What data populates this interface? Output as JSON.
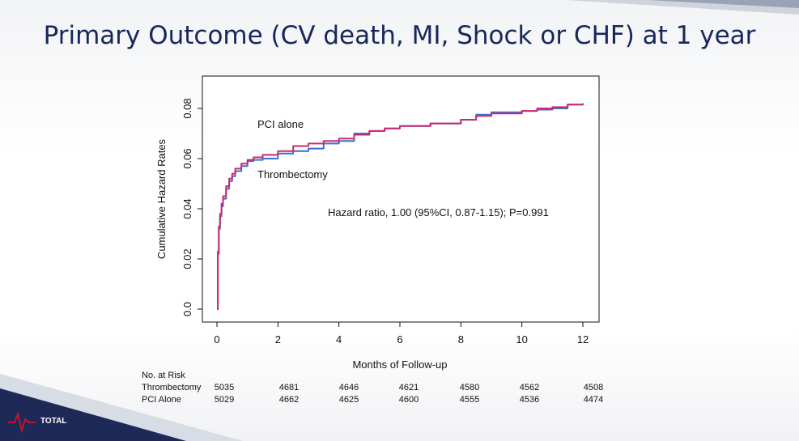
{
  "slide": {
    "title": "Primary Outcome (CV death, MI, Shock or CHF) at 1 year",
    "logo_text": "TOTAL",
    "colors": {
      "title": "#17275c",
      "navy": "#1d2a57",
      "accent_red": "#c0162c"
    }
  },
  "chart_data": {
    "type": "line",
    "xlabel": "Months of Follow-up",
    "ylabel": "Cumulative Hazard Rates",
    "xlim": [
      0,
      12
    ],
    "ylim": [
      0,
      0.08
    ],
    "xticks": [
      "0",
      "2",
      "4",
      "6",
      "8",
      "10",
      "12"
    ],
    "yticks": [
      "0.0",
      "0.02",
      "0.04",
      "0.06",
      "0.08"
    ],
    "annotations": [
      "PCI alone",
      "Thrombectomy",
      "Hazard ratio, 1.00 (95%CI, 0.87-1.15); P=0.991"
    ],
    "series": [
      {
        "color": "#3a6fd8",
        "x": [
          0,
          0.03,
          0.06,
          0.1,
          0.15,
          0.2,
          0.3,
          0.4,
          0.5,
          0.6,
          0.8,
          1.0,
          1.2,
          1.5,
          2.0,
          2.5,
          3.0,
          3.5,
          4.0,
          4.5,
          5.0,
          5.5,
          6.0,
          7.0,
          8.0,
          8.5,
          9.0,
          10.0,
          10.5,
          11.0,
          11.5,
          12.0
        ],
        "y": [
          0,
          0.022,
          0.032,
          0.037,
          0.041,
          0.044,
          0.048,
          0.051,
          0.053,
          0.055,
          0.057,
          0.059,
          0.0595,
          0.06,
          0.062,
          0.063,
          0.064,
          0.066,
          0.067,
          0.07,
          0.071,
          0.072,
          0.073,
          0.074,
          0.0755,
          0.0775,
          0.0785,
          0.079,
          0.0795,
          0.08,
          0.0815,
          0.082
        ]
      },
      {
        "color": "#cc2a6e",
        "x": [
          0,
          0.03,
          0.06,
          0.1,
          0.15,
          0.2,
          0.3,
          0.4,
          0.5,
          0.6,
          0.8,
          1.0,
          1.2,
          1.5,
          2.0,
          2.5,
          3.0,
          3.5,
          4.0,
          4.5,
          5.0,
          5.5,
          6.0,
          7.0,
          8.0,
          8.5,
          9.0,
          10.0,
          10.5,
          11.0,
          11.5,
          12.0
        ],
        "y": [
          0,
          0.023,
          0.033,
          0.038,
          0.042,
          0.045,
          0.049,
          0.052,
          0.054,
          0.056,
          0.058,
          0.0595,
          0.0605,
          0.0615,
          0.063,
          0.065,
          0.066,
          0.067,
          0.068,
          0.0695,
          0.071,
          0.072,
          0.073,
          0.074,
          0.0755,
          0.077,
          0.078,
          0.079,
          0.08,
          0.0805,
          0.0815,
          0.082
        ]
      }
    ],
    "risk_table": {
      "header": "No. at Risk",
      "rows": [
        {
          "label": "Thrombectomy",
          "values": [
            "5035",
            "4681",
            "4646",
            "4621",
            "4580",
            "4562",
            "4508"
          ]
        },
        {
          "label": "PCI Alone",
          "values": [
            "5029",
            "4662",
            "4625",
            "4600",
            "4555",
            "4536",
            "4474"
          ]
        }
      ]
    }
  }
}
